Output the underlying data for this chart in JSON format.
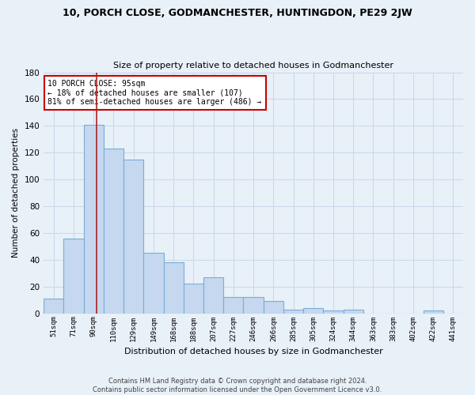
{
  "title": "10, PORCH CLOSE, GODMANCHESTER, HUNTINGDON, PE29 2JW",
  "subtitle": "Size of property relative to detached houses in Godmanchester",
  "xlabel": "Distribution of detached houses by size in Godmanchester",
  "ylabel": "Number of detached properties",
  "categories": [
    "51sqm",
    "71sqm",
    "90sqm",
    "110sqm",
    "129sqm",
    "149sqm",
    "168sqm",
    "188sqm",
    "207sqm",
    "227sqm",
    "246sqm",
    "266sqm",
    "285sqm",
    "305sqm",
    "324sqm",
    "344sqm",
    "363sqm",
    "383sqm",
    "402sqm",
    "422sqm",
    "441sqm"
  ],
  "values": [
    11,
    56,
    141,
    123,
    115,
    45,
    38,
    22,
    27,
    12,
    12,
    9,
    3,
    4,
    2,
    3,
    0,
    0,
    0,
    2,
    0
  ],
  "bar_color": "#c5d8f0",
  "bar_edge_color": "#7aadd4",
  "grid_color": "#c8d8ea",
  "bg_color": "#e8f0f8",
  "red_line_x": 2.15,
  "annotation_text": "10 PORCH CLOSE: 95sqm\n← 18% of detached houses are smaller (107)\n81% of semi-detached houses are larger (486) →",
  "annotation_box_color": "#ffffff",
  "annotation_box_edge": "#cc0000",
  "footer_text": "Contains HM Land Registry data © Crown copyright and database right 2024.\nContains public sector information licensed under the Open Government Licence v3.0.",
  "ylim": [
    0,
    180
  ],
  "yticks": [
    0,
    20,
    40,
    60,
    80,
    100,
    120,
    140,
    160,
    180
  ]
}
